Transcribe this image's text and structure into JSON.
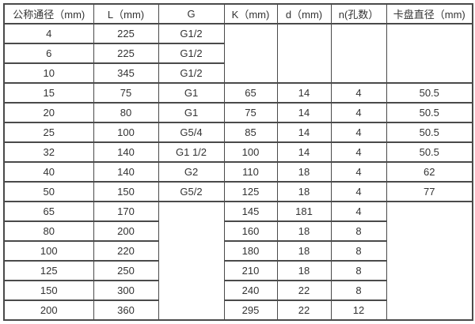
{
  "colors": {
    "border": "#4a4a4a",
    "text": "#333333",
    "background": "#ffffff"
  },
  "table": {
    "columns": [
      "公称通径（mm)",
      "L（mm)",
      "G",
      "K（mm)",
      "d（mm)",
      "n(孔数）",
      "卡盘直径（mm)"
    ],
    "rows": [
      [
        "4",
        "225",
        "G1/2",
        {
          "text": "",
          "rowspan": 3
        },
        {
          "text": "",
          "rowspan": 3
        },
        {
          "text": "",
          "rowspan": 3
        },
        {
          "text": "",
          "rowspan": 3
        }
      ],
      [
        "6",
        "225",
        "G1/2",
        null,
        null,
        null,
        null
      ],
      [
        "10",
        "345",
        "G1/2",
        null,
        null,
        null,
        null
      ],
      [
        "15",
        "75",
        "G1",
        "65",
        "14",
        "4",
        "50.5"
      ],
      [
        "20",
        "80",
        "G1",
        "75",
        "14",
        "4",
        "50.5"
      ],
      [
        "25",
        "100",
        "G5/4",
        "85",
        "14",
        "4",
        "50.5"
      ],
      [
        "32",
        "140",
        "G1 1/2",
        "100",
        "14",
        "4",
        "50.5"
      ],
      [
        "40",
        "140",
        "G2",
        "110",
        "18",
        "4",
        "62"
      ],
      [
        "50",
        "150",
        "G5/2",
        "125",
        "18",
        "4",
        "77"
      ],
      [
        "65",
        "170",
        {
          "text": "",
          "rowspan": 6
        },
        "145",
        "181",
        "4",
        {
          "text": "",
          "rowspan": 6
        }
      ],
      [
        "80",
        "200",
        null,
        "160",
        "18",
        "8",
        null
      ],
      [
        "100",
        "220",
        null,
        "180",
        "18",
        "8",
        null
      ],
      [
        "125",
        "250",
        null,
        "210",
        "18",
        "8",
        null
      ],
      [
        "150",
        "300",
        null,
        "240",
        "22",
        "8",
        null
      ],
      [
        "200",
        "360",
        null,
        "295",
        "22",
        "12",
        null
      ]
    ]
  }
}
